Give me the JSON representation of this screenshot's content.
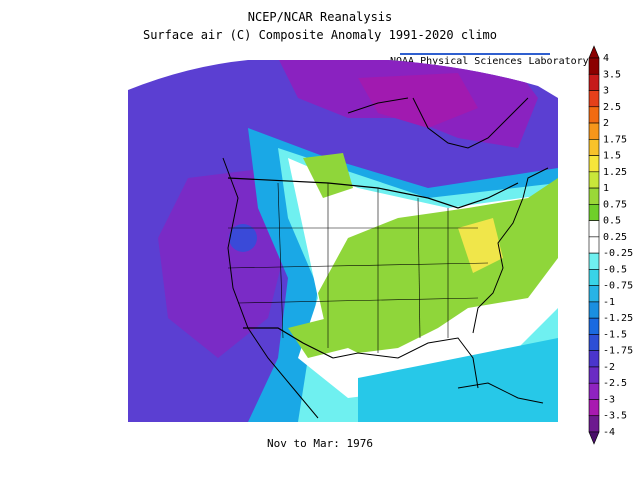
{
  "title_line1": "NCEP/NCAR Reanalysis",
  "title_line2": "Surface air (C) Composite Anomaly 1991-2020 climo",
  "lab_credit": "NOAA Physical Sciences Laboratory",
  "period_label": "Nov to Mar: 1976",
  "colorbar": {
    "labels": [
      "4",
      "3.5",
      "3",
      "2.5",
      "2",
      "1.75",
      "1.5",
      "1.25",
      "1",
      "0.75",
      "0.5",
      "0.25",
      "-0.25",
      "-0.5",
      "-0.75",
      "-1",
      "-1.25",
      "-1.5",
      "-1.75",
      "-2",
      "-2.5",
      "-3",
      "-3.5",
      "-4"
    ],
    "colors": [
      "#8b0000",
      "#c61b1b",
      "#e5401a",
      "#f26b12",
      "#f6961a",
      "#f8c22a",
      "#f6e53a",
      "#c9e63a",
      "#9ad838",
      "#6fcf2a",
      "#ffffff",
      "#ffffff",
      "#6ff0f0",
      "#39d3e8",
      "#27b3e6",
      "#1a8fe0",
      "#1a6ae0",
      "#2d4fd6",
      "#4a35cc",
      "#6a2bc4",
      "#8f23c0",
      "#a81ab0",
      "#6d1a8f"
    ]
  },
  "legend_colors": {
    "strong_negative": "#7a1fb0",
    "negative": "#5a3ad0",
    "near_zero": "#ffffff",
    "positive": "#8fd63a",
    "strong_positive": "#f0e64a"
  }
}
